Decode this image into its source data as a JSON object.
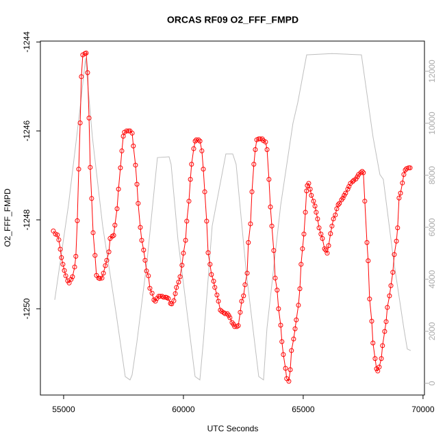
{
  "chart_data": {
    "type": "line",
    "title": "ORCAS RF09 O2_FFF_FMPD",
    "x_label": "UTC Seconds",
    "y_label": "O2_FFF_FMPD",
    "xlim": [
      54030,
      70060
    ],
    "xticks": [
      55000,
      60000,
      65000,
      70000
    ],
    "ylim": [
      -1251.94,
      -1243.98
    ],
    "yticks": [
      -1250,
      -1248,
      -1246,
      -1244
    ],
    "y2lim": [
      -450,
      13160
    ],
    "y2ticks": [
      0,
      2000,
      4000,
      6000,
      8000,
      10000,
      12000
    ],
    "series": [
      {
        "color": "#ff0000",
        "markers": true,
        "x": [
          54570,
          54660,
          54740,
          54800,
          54860,
          54910,
          54970,
          55030,
          55090,
          55170,
          55230,
          55310,
          55370,
          55460,
          55510,
          55570,
          55630,
          55690,
          55740,
          55800,
          55890,
          55940,
          56000,
          56060,
          56110,
          56170,
          56230,
          56310,
          56370,
          56460,
          56510,
          56600,
          56660,
          56740,
          56800,
          56890,
          56940,
          57030,
          57090,
          57140,
          57230,
          57290,
          57370,
          57430,
          57490,
          57540,
          57630,
          57710,
          57770,
          57860,
          57910,
          58000,
          58060,
          58110,
          58200,
          58260,
          58340,
          58400,
          58460,
          58540,
          58600,
          58690,
          58770,
          58830,
          58890,
          58970,
          59030,
          59110,
          59170,
          59260,
          59310,
          59370,
          59460,
          59510,
          59600,
          59660,
          59710,
          59800,
          59860,
          59940,
          60000,
          60090,
          60140,
          60230,
          60290,
          60340,
          60430,
          60490,
          60540,
          60630,
          60690,
          60770,
          60830,
          60890,
          60970,
          61030,
          61110,
          61170,
          61260,
          61310,
          61400,
          61460,
          61540,
          61600,
          61690,
          61740,
          61830,
          61890,
          61940,
          62030,
          62090,
          62140,
          62230,
          62290,
          62370,
          62430,
          62510,
          62570,
          62660,
          62710,
          62800,
          62860,
          62940,
          63000,
          63060,
          63140,
          63200,
          63290,
          63340,
          63430,
          63490,
          63570,
          63630,
          63690,
          63770,
          63830,
          63910,
          63970,
          64060,
          64110,
          64170,
          64260,
          64310,
          64400,
          64460,
          64510,
          64600,
          64660,
          64710,
          64800,
          64860,
          64910,
          64970,
          65030,
          65090,
          65140,
          65170,
          65230,
          65290,
          65340,
          65430,
          65490,
          65540,
          65600,
          65660,
          65740,
          65800,
          65890,
          65940,
          66000,
          66060,
          66140,
          66200,
          66260,
          66340,
          66400,
          66460,
          66510,
          66600,
          66660,
          66710,
          66770,
          66860,
          66910,
          66970,
          67060,
          67110,
          67200,
          67260,
          67310,
          67400,
          67460,
          67510,
          67570,
          67660,
          67710,
          67770,
          67860,
          67910,
          68000,
          68060,
          68110,
          68170,
          68260,
          68310,
          68400,
          68460,
          68510,
          68600,
          68660,
          68740,
          68800,
          68890,
          68940,
          69000,
          69060,
          69140,
          69200,
          69260,
          69310,
          69400,
          69460
        ],
        "values": [
          -1248.25,
          -1248.32,
          -1248.34,
          -1248.45,
          -1248.66,
          -1248.85,
          -1249.0,
          -1249.14,
          -1249.26,
          -1249.37,
          -1249.42,
          -1249.34,
          -1249.28,
          -1249.06,
          -1248.82,
          -1248.02,
          -1246.86,
          -1245.82,
          -1244.78,
          -1244.29,
          -1244.26,
          -1244.25,
          -1244.69,
          -1245.71,
          -1246.82,
          -1247.52,
          -1248.29,
          -1248.8,
          -1249.25,
          -1249.31,
          -1249.32,
          -1249.31,
          -1249.2,
          -1249.03,
          -1248.91,
          -1248.72,
          -1248.42,
          -1248.37,
          -1248.35,
          -1248.12,
          -1247.75,
          -1247.31,
          -1246.83,
          -1246.45,
          -1246.12,
          -1246.03,
          -1246.0,
          -1246.0,
          -1246.0,
          -1246.05,
          -1246.34,
          -1246.77,
          -1247.2,
          -1247.63,
          -1248.17,
          -1248.46,
          -1248.68,
          -1248.91,
          -1249.15,
          -1249.26,
          -1249.54,
          -1249.65,
          -1249.8,
          -1249.83,
          -1249.77,
          -1249.72,
          -1249.72,
          -1249.72,
          -1249.74,
          -1249.74,
          -1249.75,
          -1249.77,
          -1249.88,
          -1249.89,
          -1249.82,
          -1249.66,
          -1249.52,
          -1249.4,
          -1249.28,
          -1249.02,
          -1248.75,
          -1248.46,
          -1248.03,
          -1247.58,
          -1247.09,
          -1246.75,
          -1246.4,
          -1246.23,
          -1246.2,
          -1246.2,
          -1246.23,
          -1246.45,
          -1246.86,
          -1247.37,
          -1248.03,
          -1248.74,
          -1249.0,
          -1249.23,
          -1249.38,
          -1249.52,
          -1249.69,
          -1249.83,
          -1250.03,
          -1250.06,
          -1250.09,
          -1250.11,
          -1250.11,
          -1250.15,
          -1250.2,
          -1250.31,
          -1250.35,
          -1250.4,
          -1250.4,
          -1250.38,
          -1250.08,
          -1249.83,
          -1249.71,
          -1249.46,
          -1249.2,
          -1248.51,
          -1248.09,
          -1247.37,
          -1246.75,
          -1246.42,
          -1246.2,
          -1246.18,
          -1246.18,
          -1246.18,
          -1246.22,
          -1246.25,
          -1246.42,
          -1247.09,
          -1247.71,
          -1248.14,
          -1248.69,
          -1249.31,
          -1249.58,
          -1250.0,
          -1250.37,
          -1250.74,
          -1251.03,
          -1251.34,
          -1251.57,
          -1251.63,
          -1251.37,
          -1250.94,
          -1250.68,
          -1250.45,
          -1250.25,
          -1249.92,
          -1249.55,
          -1249.0,
          -1248.65,
          -1248.32,
          -1247.83,
          -1247.35,
          -1247.23,
          -1247.18,
          -1247.31,
          -1247.45,
          -1247.58,
          -1247.69,
          -1247.83,
          -1247.98,
          -1248.18,
          -1248.32,
          -1248.42,
          -1248.65,
          -1248.68,
          -1248.75,
          -1248.58,
          -1248.31,
          -1248.14,
          -1247.98,
          -1247.89,
          -1247.75,
          -1247.66,
          -1247.63,
          -1247.55,
          -1247.51,
          -1247.45,
          -1247.4,
          -1247.31,
          -1247.25,
          -1247.18,
          -1247.14,
          -1247.11,
          -1247.08,
          -1247.03,
          -1246.98,
          -1246.94,
          -1246.91,
          -1246.94,
          -1247.58,
          -1248.51,
          -1248.92,
          -1249.78,
          -1250.28,
          -1250.77,
          -1251.12,
          -1251.35,
          -1251.4,
          -1251.31,
          -1251.12,
          -1250.83,
          -1250.51,
          -1250.29,
          -1249.97,
          -1249.71,
          -1249.48,
          -1249.18,
          -1248.78,
          -1248.48,
          -1248.18,
          -1247.51,
          -1247.4,
          -1247.17,
          -1246.98,
          -1246.88,
          -1246.85,
          -1246.83,
          -1246.83
        ]
      },
      {
        "color": "#bebebe",
        "axis": "y2",
        "markers": false,
        "x": [
          54629,
          55200,
          55714,
          55914,
          56200,
          56629,
          57200,
          57571,
          57771,
          57857,
          58057,
          58486,
          58914,
          59400,
          59486,
          59771,
          60200,
          60486,
          60686,
          60829,
          61200,
          61771,
          62057,
          62200,
          62629,
          63143,
          63343,
          63486,
          64057,
          64571,
          64771,
          65143,
          66200,
          67429,
          67914,
          68200,
          68343,
          68771,
          69200,
          69343,
          69486
        ],
        "values": [
          3210,
          6840,
          10790,
          12500,
          9470,
          6050,
          2630,
          260,
          130,
          320,
          1580,
          4740,
          8680,
          8710,
          8420,
          5530,
          2370,
          260,
          130,
          1580,
          6050,
          8820,
          8820,
          8420,
          4210,
          260,
          130,
          2110,
          6840,
          10000,
          10790,
          12630,
          12680,
          12630,
          9470,
          8030,
          7840,
          4740,
          2110,
          1320,
          1260
        ]
      }
    ]
  }
}
